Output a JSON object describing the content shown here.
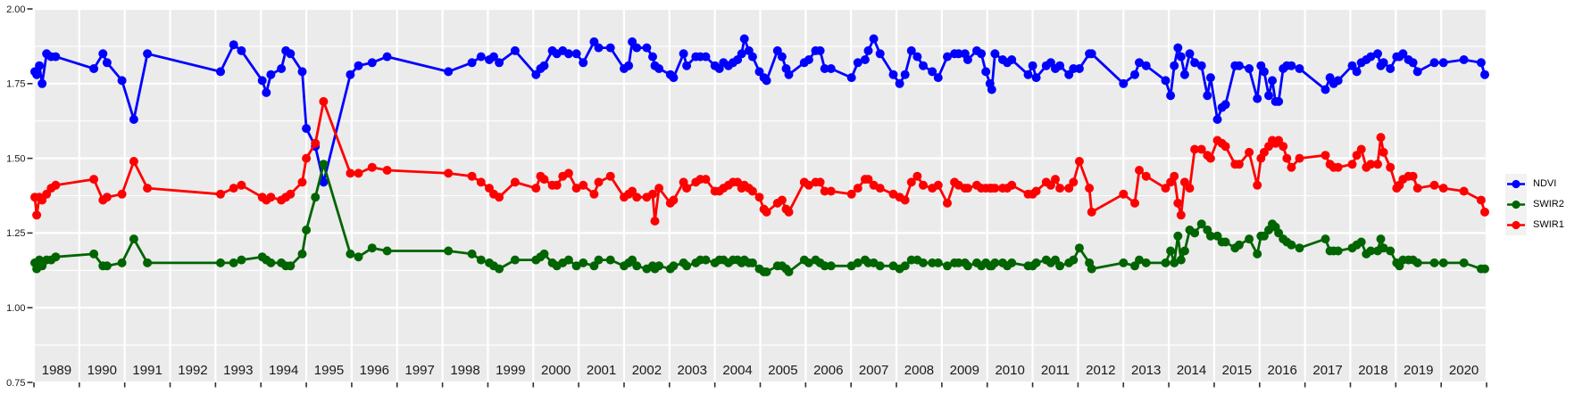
{
  "figure": {
    "background": "#FFFFFF",
    "panel_bg": "#EBEBEB",
    "grid_color": "#FFFFFF",
    "axis_text_color": "#1A1A1A",
    "tick_color": "#333333",
    "legend_key_bg": "#F2F2F2"
  },
  "y_axis": {
    "labels": [
      "2.00",
      "1.75",
      "1.50",
      "1.25",
      "1.00",
      "0.75"
    ],
    "values": [
      2.0,
      1.75,
      1.5,
      1.25,
      1.0,
      0.75
    ],
    "minor": [
      1.875,
      1.625,
      1.375,
      1.125,
      0.875
    ],
    "range": [
      0.75,
      2.0
    ]
  },
  "x_axis": {
    "years": [
      "1989",
      "1990",
      "1991",
      "1992",
      "1993",
      "1994",
      "1995",
      "1996",
      "1997",
      "1998",
      "1999",
      "2000",
      "2001",
      "2002",
      "2003",
      "2004",
      "2005",
      "2006",
      "2007",
      "2008",
      "2009",
      "2010",
      "2011",
      "2012",
      "2013",
      "2014",
      "2015",
      "2016",
      "2017",
      "2018",
      "2019",
      "2020"
    ],
    "range": [
      1989,
      2021
    ]
  },
  "legend": {
    "items": [
      {
        "label": "NDVI",
        "color": "#0000FF"
      },
      {
        "label": "SWIR2",
        "color": "#006400"
      },
      {
        "label": "SWIR1",
        "color": "#FF0000"
      }
    ]
  },
  "chart_data": {
    "type": "line",
    "title": "",
    "xlabel": "",
    "ylabel": "",
    "grid": true,
    "legend_position": "right",
    "ylim": [
      0.75,
      2.0
    ],
    "xlim": [
      1989,
      2021
    ],
    "x": [
      1989.02,
      1989.06,
      1989.12,
      1989.18,
      1989.28,
      1989.38,
      1989.48,
      1990.32,
      1990.52,
      1990.61,
      1990.94,
      1991.2,
      1991.5,
      1993.11,
      1993.4,
      1993.57,
      1994.03,
      1994.12,
      1994.22,
      1994.45,
      1994.55,
      1994.65,
      1994.91,
      1995.0,
      1995.2,
      1995.38,
      1995.97,
      1996.15,
      1996.45,
      1996.78,
      1998.13,
      1998.65,
      1998.85,
      1999.03,
      1999.13,
      1999.25,
      1999.6,
      2000.06,
      2000.16,
      2000.24,
      2000.42,
      2000.52,
      2000.65,
      2000.78,
      2000.95,
      2001.1,
      2001.34,
      2001.44,
      2001.7,
      2002.0,
      2002.1,
      2002.18,
      2002.28,
      2002.5,
      2002.63,
      2002.68,
      2002.77,
      2003.02,
      2003.09,
      2003.31,
      2003.38,
      2003.58,
      2003.68,
      2003.8,
      2004.0,
      2004.1,
      2004.19,
      2004.3,
      2004.4,
      2004.5,
      2004.59,
      2004.65,
      2004.75,
      2004.83,
      2004.98,
      2005.08,
      2005.14,
      2005.38,
      2005.48,
      2005.57,
      2005.63,
      2005.97,
      2006.07,
      2006.22,
      2006.32,
      2006.42,
      2006.56,
      2007.01,
      2007.15,
      2007.31,
      2007.38,
      2007.5,
      2007.64,
      2007.93,
      2008.07,
      2008.19,
      2008.33,
      2008.46,
      2008.59,
      2008.79,
      2008.92,
      2009.12,
      2009.28,
      2009.37,
      2009.51,
      2009.57,
      2009.77,
      2009.87,
      2009.97,
      2010.06,
      2010.1,
      2010.17,
      2010.34,
      2010.44,
      2010.54,
      2010.9,
      2011.0,
      2011.08,
      2011.3,
      2011.4,
      2011.5,
      2011.6,
      2011.8,
      2011.9,
      2012.03,
      2012.25,
      2012.3,
      2013.0,
      2013.25,
      2013.35,
      2013.5,
      2013.93,
      2014.04,
      2014.12,
      2014.2,
      2014.27,
      2014.35,
      2014.46,
      2014.57,
      2014.72,
      2014.85,
      2014.92,
      2015.07,
      2015.17,
      2015.25,
      2015.46,
      2015.55,
      2015.77,
      2015.95,
      2016.03,
      2016.1,
      2016.2,
      2016.28,
      2016.35,
      2016.42,
      2016.52,
      2016.6,
      2016.7,
      2016.88,
      2017.45,
      2017.55,
      2017.63,
      2017.73,
      2018.04,
      2018.14,
      2018.24,
      2018.35,
      2018.45,
      2018.6,
      2018.67,
      2018.73,
      2018.88,
      2019.02,
      2019.08,
      2019.16,
      2019.28,
      2019.38,
      2019.48,
      2019.85,
      2020.05,
      2020.5,
      2020.88,
      2020.96
    ],
    "series": [
      {
        "name": "NDVI",
        "color": "#0000FF",
        "values": [
          1.79,
          1.78,
          1.81,
          1.75,
          1.85,
          1.84,
          1.84,
          1.8,
          1.85,
          1.82,
          1.76,
          1.63,
          1.85,
          1.79,
          1.88,
          1.86,
          1.76,
          1.72,
          1.78,
          1.8,
          1.86,
          1.85,
          1.79,
          1.6,
          1.54,
          1.42,
          1.78,
          1.81,
          1.82,
          1.84,
          1.79,
          1.82,
          1.84,
          1.83,
          1.84,
          1.82,
          1.86,
          1.78,
          1.8,
          1.81,
          1.86,
          1.85,
          1.86,
          1.85,
          1.85,
          1.82,
          1.89,
          1.87,
          1.87,
          1.8,
          1.81,
          1.89,
          1.87,
          1.87,
          1.84,
          1.81,
          1.8,
          1.78,
          1.77,
          1.85,
          1.81,
          1.84,
          1.84,
          1.84,
          1.81,
          1.8,
          1.82,
          1.81,
          1.82,
          1.83,
          1.85,
          1.9,
          1.86,
          1.84,
          1.79,
          1.77,
          1.76,
          1.86,
          1.84,
          1.8,
          1.78,
          1.82,
          1.83,
          1.86,
          1.86,
          1.8,
          1.8,
          1.77,
          1.82,
          1.83,
          1.86,
          1.9,
          1.85,
          1.78,
          1.75,
          1.78,
          1.86,
          1.84,
          1.81,
          1.79,
          1.77,
          1.84,
          1.85,
          1.85,
          1.85,
          1.83,
          1.86,
          1.85,
          1.79,
          1.75,
          1.73,
          1.85,
          1.83,
          1.82,
          1.83,
          1.78,
          1.81,
          1.77,
          1.81,
          1.82,
          1.8,
          1.81,
          1.78,
          1.8,
          1.8,
          1.85,
          1.85,
          1.75,
          1.78,
          1.82,
          1.81,
          1.76,
          1.71,
          1.81,
          1.87,
          1.84,
          1.78,
          1.85,
          1.82,
          1.81,
          1.71,
          1.77,
          1.63,
          1.67,
          1.68,
          1.81,
          1.81,
          1.8,
          1.7,
          1.81,
          1.79,
          1.71,
          1.76,
          1.69,
          1.69,
          1.8,
          1.81,
          1.81,
          1.8,
          1.73,
          1.77,
          1.75,
          1.76,
          1.81,
          1.79,
          1.82,
          1.83,
          1.84,
          1.85,
          1.81,
          1.82,
          1.8,
          1.84,
          1.84,
          1.85,
          1.83,
          1.82,
          1.79,
          1.82,
          1.82,
          1.83,
          1.82,
          1.78
        ]
      },
      {
        "name": "SWIR2",
        "color": "#006400",
        "values": [
          1.15,
          1.13,
          1.16,
          1.14,
          1.16,
          1.16,
          1.17,
          1.18,
          1.14,
          1.14,
          1.15,
          1.23,
          1.15,
          1.15,
          1.15,
          1.16,
          1.17,
          1.16,
          1.15,
          1.15,
          1.14,
          1.14,
          1.18,
          1.26,
          1.37,
          1.48,
          1.18,
          1.17,
          1.2,
          1.19,
          1.19,
          1.18,
          1.16,
          1.15,
          1.14,
          1.13,
          1.16,
          1.16,
          1.17,
          1.18,
          1.15,
          1.14,
          1.15,
          1.16,
          1.14,
          1.15,
          1.14,
          1.16,
          1.16,
          1.14,
          1.15,
          1.16,
          1.14,
          1.13,
          1.14,
          1.13,
          1.14,
          1.13,
          1.14,
          1.15,
          1.14,
          1.15,
          1.16,
          1.16,
          1.15,
          1.16,
          1.16,
          1.15,
          1.16,
          1.16,
          1.15,
          1.16,
          1.15,
          1.15,
          1.13,
          1.12,
          1.12,
          1.14,
          1.14,
          1.13,
          1.12,
          1.16,
          1.15,
          1.16,
          1.15,
          1.14,
          1.14,
          1.14,
          1.15,
          1.16,
          1.15,
          1.15,
          1.14,
          1.14,
          1.13,
          1.14,
          1.16,
          1.16,
          1.15,
          1.15,
          1.15,
          1.14,
          1.15,
          1.15,
          1.15,
          1.14,
          1.15,
          1.14,
          1.15,
          1.14,
          1.14,
          1.15,
          1.15,
          1.14,
          1.15,
          1.14,
          1.14,
          1.15,
          1.16,
          1.15,
          1.16,
          1.14,
          1.15,
          1.16,
          1.2,
          1.15,
          1.13,
          1.15,
          1.14,
          1.16,
          1.15,
          1.15,
          1.19,
          1.15,
          1.24,
          1.16,
          1.19,
          1.26,
          1.25,
          1.28,
          1.26,
          1.24,
          1.24,
          1.22,
          1.22,
          1.2,
          1.21,
          1.23,
          1.18,
          1.24,
          1.24,
          1.26,
          1.28,
          1.27,
          1.25,
          1.23,
          1.22,
          1.21,
          1.2,
          1.23,
          1.19,
          1.19,
          1.19,
          1.2,
          1.21,
          1.22,
          1.18,
          1.19,
          1.19,
          1.23,
          1.2,
          1.19,
          1.15,
          1.14,
          1.16,
          1.16,
          1.16,
          1.15,
          1.15,
          1.15,
          1.15,
          1.13,
          1.13
        ]
      },
      {
        "name": "SWIR1",
        "color": "#FF0000",
        "values": [
          1.37,
          1.31,
          1.37,
          1.36,
          1.38,
          1.4,
          1.41,
          1.43,
          1.36,
          1.37,
          1.38,
          1.49,
          1.4,
          1.38,
          1.4,
          1.41,
          1.37,
          1.36,
          1.37,
          1.36,
          1.37,
          1.38,
          1.42,
          1.5,
          1.55,
          1.69,
          1.45,
          1.45,
          1.47,
          1.46,
          1.45,
          1.44,
          1.42,
          1.4,
          1.38,
          1.37,
          1.42,
          1.4,
          1.44,
          1.43,
          1.41,
          1.41,
          1.44,
          1.45,
          1.4,
          1.41,
          1.38,
          1.42,
          1.44,
          1.37,
          1.38,
          1.39,
          1.37,
          1.37,
          1.38,
          1.29,
          1.4,
          1.35,
          1.36,
          1.42,
          1.4,
          1.42,
          1.43,
          1.43,
          1.39,
          1.39,
          1.4,
          1.41,
          1.42,
          1.42,
          1.4,
          1.41,
          1.4,
          1.39,
          1.37,
          1.33,
          1.32,
          1.35,
          1.36,
          1.33,
          1.32,
          1.42,
          1.41,
          1.42,
          1.42,
          1.39,
          1.39,
          1.38,
          1.4,
          1.43,
          1.43,
          1.41,
          1.4,
          1.38,
          1.37,
          1.36,
          1.42,
          1.44,
          1.41,
          1.4,
          1.41,
          1.35,
          1.42,
          1.41,
          1.4,
          1.4,
          1.41,
          1.4,
          1.4,
          1.4,
          1.4,
          1.4,
          1.4,
          1.4,
          1.41,
          1.38,
          1.38,
          1.39,
          1.42,
          1.41,
          1.43,
          1.4,
          1.4,
          1.42,
          1.49,
          1.4,
          1.32,
          1.38,
          1.35,
          1.46,
          1.44,
          1.4,
          1.42,
          1.44,
          1.35,
          1.31,
          1.42,
          1.4,
          1.53,
          1.53,
          1.51,
          1.5,
          1.56,
          1.55,
          1.54,
          1.48,
          1.48,
          1.52,
          1.41,
          1.5,
          1.52,
          1.54,
          1.56,
          1.55,
          1.56,
          1.54,
          1.5,
          1.47,
          1.5,
          1.51,
          1.48,
          1.47,
          1.47,
          1.48,
          1.51,
          1.53,
          1.47,
          1.48,
          1.48,
          1.57,
          1.52,
          1.47,
          1.4,
          1.41,
          1.43,
          1.44,
          1.44,
          1.4,
          1.41,
          1.4,
          1.39,
          1.36,
          1.32
        ]
      }
    ]
  }
}
